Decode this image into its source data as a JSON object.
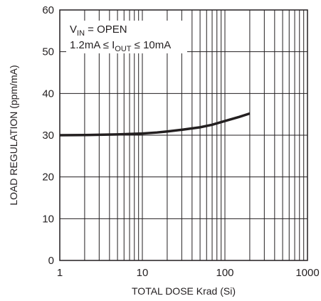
{
  "chart_data": {
    "type": "line",
    "x_scale": "log",
    "xlabel": "TOTAL DOSE Krad (Si)",
    "ylabel": "LOAD REGULATION (ppm/mA)",
    "xlim": [
      1,
      1000
    ],
    "ylim": [
      0,
      60
    ],
    "x_ticks": [
      "1",
      "10",
      "100",
      "1000"
    ],
    "y_ticks": [
      "0",
      "10",
      "20",
      "30",
      "40",
      "50",
      "60"
    ],
    "grid": true,
    "annotation": {
      "line1_prefix": "V",
      "line1_sub": "IN",
      "line1_rest": " = OPEN",
      "line2_prefix": "1.2mA ≤ I",
      "line2_sub": "OUT",
      "line2_rest": " ≤ 10mA"
    },
    "series": [
      {
        "x": [
          1,
          2,
          3,
          5,
          7,
          10,
          15,
          20,
          30,
          50,
          70,
          100,
          150,
          200
        ],
        "y": [
          30.0,
          30.05,
          30.1,
          30.2,
          30.3,
          30.4,
          30.65,
          30.9,
          31.3,
          31.9,
          32.5,
          33.4,
          34.4,
          35.2
        ]
      }
    ]
  }
}
